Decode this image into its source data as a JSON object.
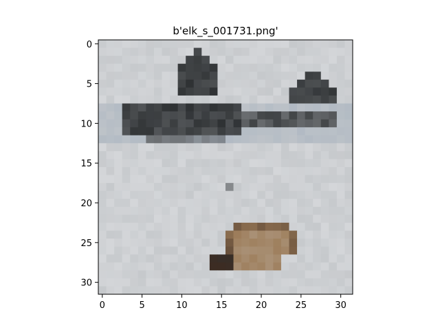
{
  "chart_data": {
    "type": "heatmap",
    "title": "b'elk_s_001731.png'",
    "xlabel": "",
    "ylabel": "",
    "image_size": [
      32,
      32
    ],
    "xlim": [
      -0.5,
      31.5
    ],
    "ylim": [
      31.5,
      -0.5
    ],
    "x_ticks": [
      0,
      5,
      10,
      15,
      20,
      25,
      30
    ],
    "y_ticks": [
      0,
      5,
      10,
      15,
      20,
      25,
      30
    ],
    "grid": false,
    "colors": {
      "background": "#c6c9cc",
      "snow_light": "#d4d6d9",
      "sky_band": "#a9b4c0",
      "dark_ridge": "#2e3133",
      "mid_gray": "#6a6d70",
      "brown": "#9d7d5a",
      "dark_brown": "#3d2c22",
      "frame": "#000000"
    }
  }
}
